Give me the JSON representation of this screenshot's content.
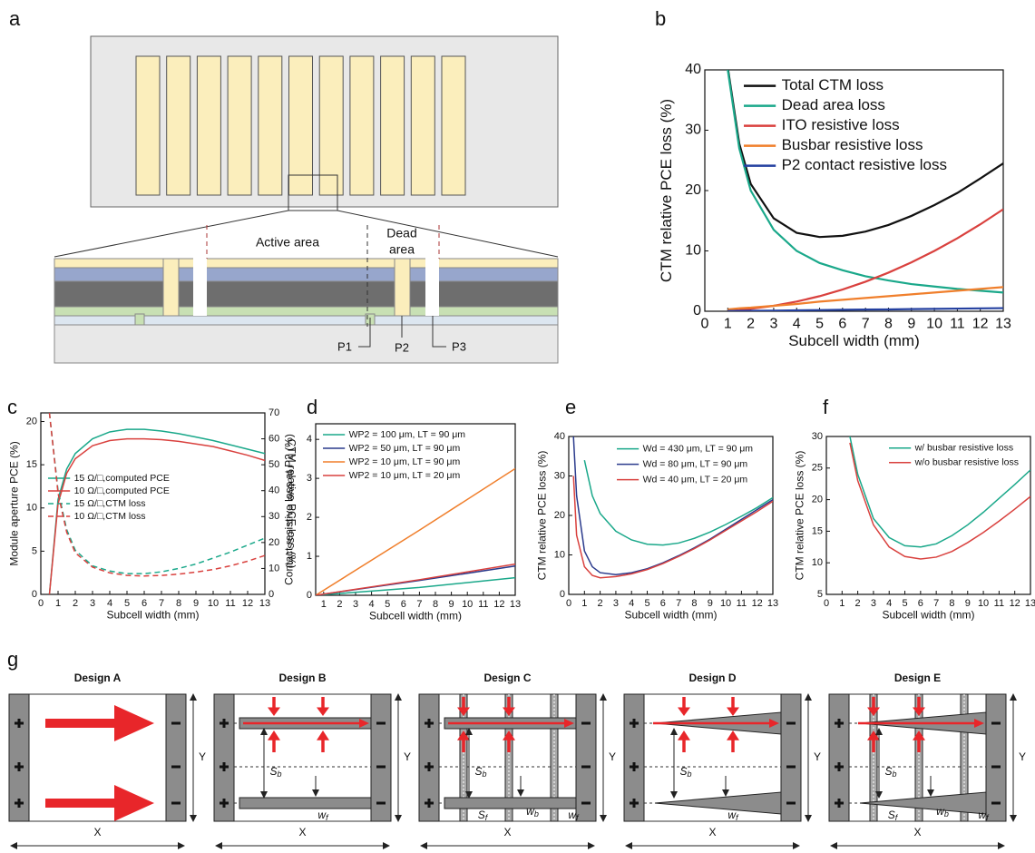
{
  "panel_a": {
    "label": "a",
    "active_area": "Active area",
    "dead_line1": "Dead",
    "dead_line2": "area",
    "p1": "P1",
    "p2": "P2",
    "p3": "P3"
  },
  "chart_data": [
    {
      "panel": "b",
      "type": "line",
      "x_label": "Subcell width (mm)",
      "y_label": "CTM relative PCE loss (%)",
      "legend": "upper right",
      "x": [
        1,
        1.5,
        2,
        3,
        4,
        5,
        6,
        7,
        8,
        9,
        10,
        11,
        12,
        13
      ],
      "xlim": [
        0,
        13
      ],
      "xticks": [
        0,
        1,
        2,
        3,
        4,
        5,
        6,
        7,
        8,
        9,
        10,
        11,
        12,
        13
      ],
      "ylim": [
        0,
        40
      ],
      "yticks": [
        0,
        10,
        20,
        30,
        40
      ],
      "series": [
        {
          "name": "Total CTM loss",
          "color": "#111111",
          "values": [
            40.4,
            27.8,
            21.1,
            15.4,
            13,
            12.3,
            12.5,
            13.2,
            14.3,
            15.8,
            17.6,
            19.6,
            22,
            24.5
          ]
        },
        {
          "name": "Dead area loss",
          "color": "#1aa88a",
          "values": [
            40,
            27,
            20,
            13.5,
            10,
            8,
            6.8,
            5.8,
            5.1,
            4.5,
            4.1,
            3.7,
            3.4,
            3.1
          ]
        },
        {
          "name": "ITO resistive loss",
          "color": "#d9413e",
          "values": [
            0.1,
            0.2,
            0.4,
            0.9,
            1.6,
            2.5,
            3.6,
            4.9,
            6.4,
            8.1,
            10,
            12.1,
            14.4,
            16.9
          ]
        },
        {
          "name": "Busbar resistive loss",
          "color": "#f07f2c",
          "values": [
            0.3,
            0.5,
            0.6,
            0.9,
            1.2,
            1.6,
            1.9,
            2.2,
            2.5,
            2.8,
            3.1,
            3.4,
            3.7,
            4
          ]
        },
        {
          "name": "P2 contact resistive loss",
          "color": "#2440a0",
          "values": [
            0.04,
            0.06,
            0.08,
            0.1,
            0.16,
            0.2,
            0.24,
            0.28,
            0.3,
            0.36,
            0.4,
            0.44,
            0.48,
            0.52
          ]
        }
      ]
    },
    {
      "panel": "c",
      "type": "line",
      "x_label": "Subcell width (mm)",
      "y_label": "Module aperture PCE (%)",
      "y2_label": "CTM relative PCE loss (%)",
      "legend": "center left",
      "x": [
        0.5,
        1,
        1.5,
        2,
        3,
        4,
        5,
        6,
        7,
        8,
        9,
        10,
        11,
        12,
        13
      ],
      "xlim": [
        0,
        13
      ],
      "xticks": [
        0,
        1,
        2,
        3,
        4,
        5,
        6,
        7,
        8,
        9,
        10,
        11,
        12,
        13
      ],
      "ylim": [
        0,
        21
      ],
      "yticks": [
        0,
        5,
        10,
        15,
        20
      ],
      "y2lim": [
        0,
        70
      ],
      "y2ticks": [
        0,
        10,
        20,
        30,
        40,
        50,
        60,
        70
      ],
      "series": [
        {
          "name": "15 Ω/□,computed PCE",
          "color": "#1aa88a",
          "style": "solid",
          "values": [
            0,
            11,
            14.5,
            16.3,
            18,
            18.8,
            19.1,
            19.1,
            18.9,
            18.6,
            18.2,
            17.8,
            17.3,
            16.8,
            16.3
          ]
        },
        {
          "name": "10 Ω/□,computed PCE",
          "color": "#d9413e",
          "style": "solid",
          "values": [
            0,
            10.5,
            14,
            15.7,
            17.2,
            17.8,
            18,
            18,
            17.9,
            17.7,
            17.4,
            17.1,
            16.6,
            16.1,
            15.5
          ]
        },
        {
          "name": "15 Ω/□,CTM loss",
          "color": "#1aa88a",
          "style": "dashed",
          "axis": "y2",
          "values": [
            70,
            40,
            25,
            17,
            11,
            9,
            8,
            8,
            8.7,
            10,
            11.7,
            14,
            16.3,
            19,
            21.7
          ]
        },
        {
          "name": "10 Ω/□,CTM loss",
          "color": "#d9413e",
          "style": "dashed",
          "axis": "y2",
          "values": [
            70,
            39,
            24,
            16,
            10.5,
            8.3,
            7.3,
            7.1,
            7.3,
            7.8,
            8.6,
            9.6,
            11,
            12.8,
            15
          ]
        }
      ]
    },
    {
      "panel": "d",
      "type": "line",
      "x_label": "Subcell width (mm)",
      "y_label": "Contact resistive loss at P2 (%)",
      "legend": "upper left",
      "x": [
        0.5,
        7,
        13
      ],
      "xlim": [
        0.5,
        13
      ],
      "xticks": [
        1,
        2,
        3,
        4,
        5,
        6,
        7,
        8,
        9,
        10,
        11,
        12,
        13
      ],
      "ylim": [
        0,
        4.4
      ],
      "yticks": [
        0,
        1,
        2,
        3,
        4
      ],
      "series": [
        {
          "name": "WP2 = 100 μm, LT = 90 μm",
          "color": "#1aa88a",
          "values": [
            0,
            0.2,
            0.45
          ]
        },
        {
          "name": "WP2 = 50 μm, LT = 90 μm",
          "color": "#2a3a8c",
          "values": [
            0,
            0.38,
            0.75
          ]
        },
        {
          "name": "WP2 = 10 μm, LT = 90 μm",
          "color": "#f07f2c",
          "values": [
            0,
            1.67,
            3.25
          ]
        },
        {
          "name": "WP2 = 10 μm, LT = 20 μm",
          "color": "#d9413e",
          "values": [
            0,
            0.4,
            0.8
          ]
        }
      ]
    },
    {
      "panel": "e",
      "type": "line",
      "x_label": "Subcell width (mm)",
      "y_label": "CTM relative PCE loss (%)",
      "legend": "upper right",
      "x": [
        0.3,
        0.5,
        1,
        1.5,
        2,
        3,
        4,
        5,
        6,
        7,
        8,
        9,
        10,
        11,
        12,
        13
      ],
      "xlim": [
        0,
        13
      ],
      "xticks": [
        0,
        1,
        2,
        3,
        4,
        5,
        6,
        7,
        8,
        9,
        10,
        11,
        12,
        13
      ],
      "ylim": [
        0,
        40
      ],
      "yticks": [
        0,
        10,
        20,
        30,
        40
      ],
      "series": [
        {
          "name": "Wd = 430 μm, LT = 90 μm",
          "color": "#1aa88a",
          "values": [
            null,
            null,
            34,
            25,
            20.5,
            16,
            13.8,
            12.7,
            12.5,
            13,
            14.2,
            15.8,
            17.7,
            19.8,
            22,
            24.5
          ]
        },
        {
          "name": "Wd = 80 μm, LT = 90 μm",
          "color": "#2a3a8c",
          "values": [
            40,
            25,
            11,
            7,
            5.5,
            5,
            5.5,
            6.5,
            8,
            9.8,
            11.8,
            14,
            16.5,
            19,
            21.5,
            24
          ]
        },
        {
          "name": "Wd = 40 μm, LT = 20 μm",
          "color": "#d9413e",
          "values": [
            30,
            15,
            7,
            4.8,
            4.2,
            4.5,
            5.2,
            6.3,
            7.8,
            9.6,
            11.6,
            13.8,
            16.2,
            18.6,
            21,
            23.6
          ]
        }
      ]
    },
    {
      "panel": "f",
      "type": "line",
      "x_label": "Subcell width (mm)",
      "y_label": "CTM relative PCE loss (%)",
      "legend": "upper right",
      "x": [
        1.5,
        2,
        3,
        4,
        5,
        6,
        7,
        8,
        9,
        10,
        11,
        12,
        13
      ],
      "xlim": [
        0,
        13
      ],
      "xticks": [
        0,
        1,
        2,
        3,
        4,
        5,
        6,
        7,
        8,
        9,
        10,
        11,
        12,
        13
      ],
      "ylim": [
        5,
        30
      ],
      "yticks": [
        5,
        10,
        15,
        20,
        25,
        30
      ],
      "series": [
        {
          "name": "w/ busbar resistive loss",
          "color": "#1aa88a",
          "values": [
            30,
            24,
            17,
            14,
            12.7,
            12.5,
            13,
            14.3,
            16,
            18,
            20.2,
            22.4,
            24.7
          ]
        },
        {
          "name": "w/o busbar resistive loss",
          "color": "#d9413e",
          "values": [
            29,
            23,
            16,
            12.5,
            11,
            10.6,
            10.9,
            11.8,
            13.2,
            14.8,
            16.6,
            18.5,
            20.5
          ]
        }
      ]
    }
  ],
  "panel_g": {
    "label": "g",
    "designs": [
      {
        "title": "Design A"
      },
      {
        "title": "Design B"
      },
      {
        "title": "Design C"
      },
      {
        "title": "Design D"
      },
      {
        "title": "Design E"
      }
    ],
    "x_axis": "X",
    "y_axis": "Y",
    "s_b": {
      "main": "S",
      "sub": "b"
    },
    "s_f": {
      "main": "S",
      "sub": "f"
    },
    "w_f": {
      "main": "w",
      "sub": "f"
    },
    "w_b": {
      "main": "w",
      "sub": "b"
    }
  }
}
